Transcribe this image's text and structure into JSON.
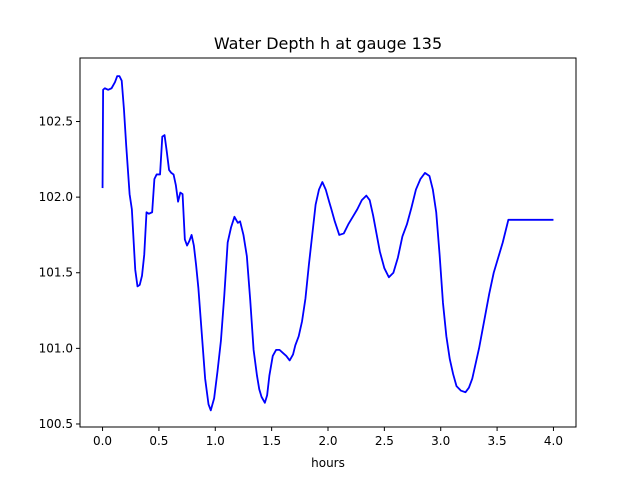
{
  "chart_data": {
    "type": "line",
    "title": "Water Depth h at gauge 135",
    "xlabel": "hours",
    "ylabel": "",
    "xlim": [
      -0.2,
      4.2
    ],
    "ylim": [
      100.48,
      102.92
    ],
    "grid": false,
    "xticks": [
      0.0,
      0.5,
      1.0,
      1.5,
      2.0,
      2.5,
      3.0,
      3.5,
      4.0
    ],
    "xtick_labels": [
      "0.0",
      "0.5",
      "1.0",
      "1.5",
      "2.0",
      "2.5",
      "3.0",
      "3.5",
      "4.0"
    ],
    "yticks": [
      100.5,
      101.0,
      101.5,
      102.0,
      102.5
    ],
    "ytick_labels": [
      "100.5",
      "101.0",
      "101.5",
      "102.0",
      "102.5"
    ],
    "series": [
      {
        "color": "#0000ff",
        "x": [
          0.0,
          0.005,
          0.02,
          0.05,
          0.08,
          0.11,
          0.13,
          0.15,
          0.17,
          0.19,
          0.21,
          0.24,
          0.26,
          0.29,
          0.31,
          0.33,
          0.35,
          0.37,
          0.39,
          0.41,
          0.44,
          0.46,
          0.48,
          0.51,
          0.53,
          0.55,
          0.57,
          0.59,
          0.61,
          0.63,
          0.65,
          0.67,
          0.69,
          0.71,
          0.73,
          0.75,
          0.77,
          0.79,
          0.81,
          0.83,
          0.85,
          0.87,
          0.89,
          0.91,
          0.94,
          0.96,
          0.99,
          1.02,
          1.05,
          1.08,
          1.11,
          1.14,
          1.17,
          1.2,
          1.22,
          1.25,
          1.28,
          1.31,
          1.34,
          1.37,
          1.39,
          1.41,
          1.44,
          1.46,
          1.48,
          1.51,
          1.54,
          1.57,
          1.6,
          1.63,
          1.66,
          1.69,
          1.71,
          1.74,
          1.77,
          1.8,
          1.83,
          1.86,
          1.89,
          1.92,
          1.95,
          1.98,
          2.01,
          2.03,
          2.06,
          2.1,
          2.14,
          2.18,
          2.22,
          2.26,
          2.3,
          2.34,
          2.37,
          2.4,
          2.43,
          2.46,
          2.5,
          2.54,
          2.58,
          2.62,
          2.66,
          2.7,
          2.74,
          2.78,
          2.82,
          2.86,
          2.9,
          2.93,
          2.96,
          2.99,
          3.02,
          3.05,
          3.08,
          3.11,
          3.14,
          3.18,
          3.22,
          3.25,
          3.28,
          3.31,
          3.34,
          3.37,
          3.4,
          3.43,
          3.47,
          3.51,
          3.55,
          3.58,
          3.6,
          3.63,
          3.66,
          3.7,
          3.74,
          3.78,
          3.82,
          3.86,
          3.9,
          3.94,
          3.98,
          4.0
        ],
        "values": [
          102.06,
          102.71,
          102.72,
          102.71,
          102.72,
          102.76,
          102.8,
          102.8,
          102.77,
          102.58,
          102.34,
          102.02,
          101.92,
          101.52,
          101.41,
          101.42,
          101.48,
          101.62,
          101.9,
          101.89,
          101.9,
          102.12,
          102.15,
          102.15,
          102.4,
          102.41,
          102.3,
          102.18,
          102.16,
          102.15,
          102.08,
          101.97,
          102.03,
          102.02,
          101.72,
          101.68,
          101.71,
          101.75,
          101.68,
          101.55,
          101.4,
          101.2,
          101.0,
          100.8,
          100.63,
          100.59,
          100.67,
          100.85,
          101.05,
          101.35,
          101.7,
          101.8,
          101.87,
          101.83,
          101.84,
          101.75,
          101.61,
          101.32,
          100.99,
          100.82,
          100.73,
          100.68,
          100.64,
          100.69,
          100.82,
          100.95,
          100.99,
          100.99,
          100.97,
          100.95,
          100.92,
          100.96,
          101.02,
          101.08,
          101.18,
          101.33,
          101.55,
          101.75,
          101.95,
          102.05,
          102.1,
          102.05,
          101.97,
          101.92,
          101.84,
          101.75,
          101.76,
          101.82,
          101.87,
          101.92,
          101.98,
          102.01,
          101.98,
          101.88,
          101.76,
          101.64,
          101.53,
          101.47,
          101.5,
          101.6,
          101.74,
          101.82,
          101.93,
          102.05,
          102.12,
          102.16,
          102.14,
          102.05,
          101.9,
          101.62,
          101.3,
          101.08,
          100.93,
          100.83,
          100.75,
          100.72,
          100.71,
          100.74,
          100.8,
          100.9,
          101.0,
          101.12,
          101.24,
          101.36,
          101.5,
          101.6,
          101.7,
          101.79,
          101.85,
          101.85,
          101.85,
          101.85,
          101.85,
          101.85,
          101.85,
          101.85,
          101.85,
          101.85,
          101.85,
          101.85
        ]
      }
    ]
  }
}
